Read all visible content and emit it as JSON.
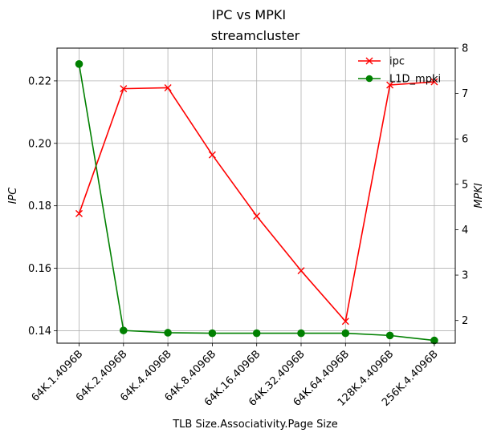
{
  "chart_data": {
    "type": "line",
    "suptitle": "IPC vs MPKI",
    "title": "streamcluster",
    "xlabel": "TLB Size.Associativity.Page Size",
    "ylabel_left": "IPC",
    "ylabel_right": "MPKI",
    "categories": [
      "64K.1.4096B",
      "64K.2.4096B",
      "64K.4.4096B",
      "64K.8.4096B",
      "64K.16.4096B",
      "64K.32.4096B",
      "64K.64.4096B",
      "128K.4.4096B",
      "256K.4.4096B"
    ],
    "left_axis": {
      "min": 0.136,
      "max": 0.2305,
      "ticks": [
        0.14,
        0.16,
        0.18,
        0.2,
        0.22
      ],
      "tick_labels": [
        "0.14",
        "0.16",
        "0.18",
        "0.20",
        "0.22"
      ]
    },
    "right_axis": {
      "min": 1.5,
      "max": 8.0,
      "ticks": [
        2,
        3,
        4,
        5,
        6,
        7,
        8
      ],
      "tick_labels": [
        "2",
        "3",
        "4",
        "5",
        "6",
        "7",
        "8"
      ]
    },
    "grid": true,
    "legend_position": "top-right",
    "series": [
      {
        "name": "ipc",
        "axis": "left",
        "color": "#ff0000",
        "marker": "x",
        "values": [
          0.1775,
          0.2175,
          0.2178,
          0.1963,
          0.1767,
          0.1592,
          0.143,
          0.2187,
          0.2197
        ]
      },
      {
        "name": "L1D_mpki",
        "axis": "right",
        "color": "#008000",
        "marker": "o",
        "values": [
          7.65,
          1.78,
          1.73,
          1.72,
          1.72,
          1.72,
          1.72,
          1.67,
          1.56
        ]
      }
    ]
  }
}
